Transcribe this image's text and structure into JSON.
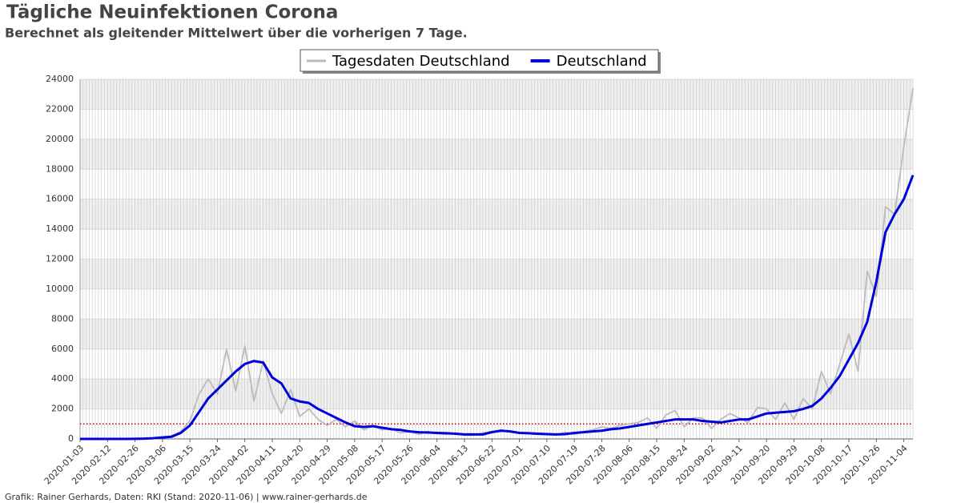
{
  "chart_data": {
    "type": "line",
    "title": "Tägliche Neuinfektionen Corona",
    "subtitle": "Berechnet als gleitender Mittelwert über die vorherigen 7 Tage.",
    "footer": "Grafik: Rainer Gerhards, Daten: RKI (Stand: 2020-11-06) | www.rainer-gerhards.de",
    "categories": [
      "2020-01-03",
      null,
      null,
      "2020-02-12",
      null,
      null,
      "2020-02-26",
      null,
      null,
      "2020-03-06",
      null,
      null,
      "2020-03-15",
      null,
      null,
      "2020-03-24",
      null,
      null,
      "2020-04-02",
      null,
      null,
      "2020-04-11",
      null,
      null,
      "2020-04-20",
      null,
      null,
      "2020-04-29",
      null,
      null,
      "2020-05-08",
      null,
      null,
      "2020-05-17",
      null,
      null,
      "2020-05-26",
      null,
      null,
      "2020-06-04",
      null,
      null,
      "2020-06-13",
      null,
      null,
      "2020-06-22",
      null,
      null,
      "2020-07-01",
      null,
      null,
      "2020-07-10",
      null,
      null,
      "2020-07-19",
      null,
      null,
      "2020-07-28",
      null,
      null,
      "2020-08-06",
      null,
      null,
      "2020-08-15",
      null,
      null,
      "2020-08-24",
      null,
      null,
      "2020-09-02",
      null,
      null,
      "2020-09-11",
      null,
      null,
      "2020-09-20",
      null,
      null,
      "2020-09-29",
      null,
      null,
      "2020-10-08",
      null,
      null,
      "2020-10-17",
      null,
      null,
      "2020-10-26",
      null,
      null,
      "2020-11-04",
      null
    ],
    "series": [
      {
        "name": "Tagesdaten Deutschland",
        "color": "#bbbbbb",
        "values": [
          0,
          0,
          0,
          0,
          0,
          0,
          10,
          30,
          60,
          100,
          200,
          500,
          1200,
          3000,
          4000,
          3000,
          6000,
          3200,
          6200,
          2500,
          5200,
          3000,
          1700,
          3300,
          1500,
          2000,
          1300,
          900,
          1300,
          800,
          1200,
          600,
          900,
          600,
          700,
          400,
          500,
          300,
          500,
          350,
          300,
          400,
          250,
          250,
          400,
          500,
          600,
          450,
          400,
          350,
          300,
          300,
          250,
          450,
          300,
          500,
          600,
          800,
          700,
          900,
          1000,
          1100,
          1400,
          700,
          1600,
          1900,
          800,
          1400,
          1400,
          700,
          1300,
          1700,
          1400,
          1100,
          2100,
          2000,
          1300,
          2400,
          1300,
          2700,
          2000,
          4500,
          3000,
          5000,
          7000,
          4500,
          11200,
          9500,
          15500,
          15000,
          19500,
          23400
        ]
      },
      {
        "name": "Deutschland",
        "color": "#0000dd",
        "values": [
          0,
          0,
          0,
          0,
          0,
          0,
          10,
          20,
          50,
          100,
          150,
          400,
          900,
          1800,
          2700,
          3300,
          3900,
          4500,
          5000,
          5200,
          5100,
          4100,
          3700,
          2700,
          2500,
          2400,
          2000,
          1700,
          1400,
          1100,
          850,
          800,
          850,
          750,
          650,
          600,
          500,
          450,
          430,
          400,
          380,
          350,
          300,
          300,
          300,
          450,
          550,
          500,
          400,
          380,
          350,
          320,
          300,
          320,
          400,
          450,
          500,
          550,
          650,
          700,
          800,
          900,
          1000,
          1100,
          1200,
          1300,
          1300,
          1300,
          1200,
          1150,
          1100,
          1200,
          1300,
          1300,
          1500,
          1700,
          1750,
          1800,
          1850,
          2000,
          2200,
          2700,
          3400,
          4200,
          5300,
          6400,
          7800,
          10500,
          13800,
          15000,
          16000,
          17600
        ]
      }
    ],
    "reference_line": {
      "value": 1000,
      "color": "#cc0000"
    },
    "ylim": [
      0,
      24000
    ],
    "yticks": [
      0,
      2000,
      4000,
      6000,
      8000,
      10000,
      12000,
      14000,
      16000,
      18000,
      20000,
      22000,
      24000
    ],
    "grid": true
  }
}
